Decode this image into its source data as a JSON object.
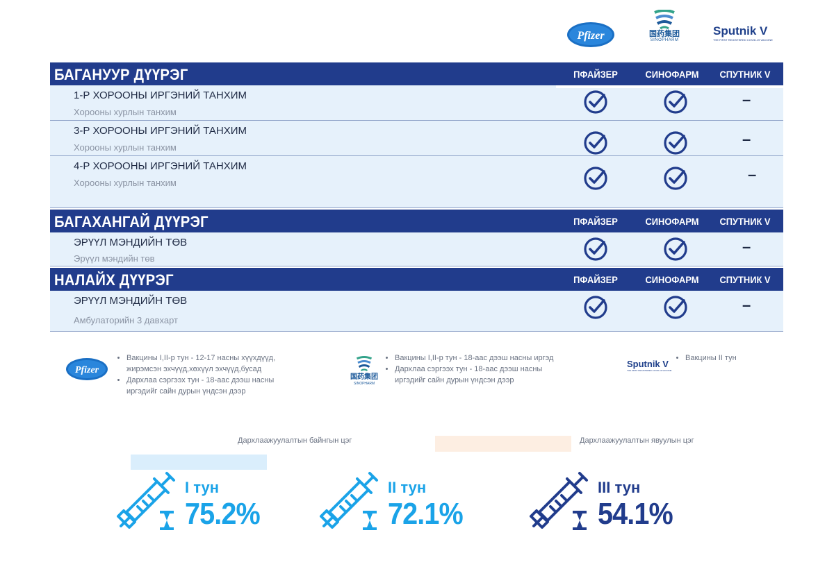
{
  "logos": {
    "pfizer": "Pfizer",
    "sinopharm_cn": "国药集团",
    "sinopharm_en": "SINOPHARM",
    "sputnik": "Sputnik V",
    "sputnik_sub": "THE FIRST REGISTERED COVID-19 VACCINE"
  },
  "columns": {
    "c1": "ПФАЙЗЕР",
    "c2": "СИНОФАРМ",
    "c3": "СПУТНИК V"
  },
  "sections": [
    {
      "title": "БАГАНУУР ДҮҮРЭГ",
      "rows": [
        {
          "title": "1-Р ХОРООНЫ ИРГЭНИЙ ТАНХИМ",
          "sub": "Хорооны хурлын танхим",
          "dash": "–"
        },
        {
          "title": "3-Р ХОРООНЫ ИРГЭНИЙ ТАНХИМ",
          "sub": "Хорооны хурлын  танхим",
          "dash": "–"
        },
        {
          "title": "4-Р ХОРООНЫ ИРГЭНИЙ ТАНХИМ",
          "sub": "Хорооны хурлын танхим",
          "dash": "–"
        }
      ]
    },
    {
      "title": "БАГАХАНГАЙ ДҮҮРЭГ",
      "rows": [
        {
          "title": "ЭРҮҮЛ МЭНДИЙН ТӨВ",
          "sub": "Эрүүл мэндийн төв",
          "dash": "–"
        }
      ]
    },
    {
      "title": "НАЛАЙХ ДҮҮРЭГ",
      "rows": [
        {
          "title": "ЭРҮҮЛ МЭНДИЙН ТӨВ",
          "sub": "Амбулаторийн 3 давхарт",
          "dash": "–"
        }
      ]
    }
  ],
  "legend": {
    "pfizer": [
      "Вакцины I,II-р тун - 12-17 насны хүүхдүүд, жирэмсэн эхчүүд,хөхүүл эхчүүд,бусад",
      "Дархлаа сэргээх тун - 18-аас дээш насны иргэдийг сайн дурын үндсэн дээр"
    ],
    "sinopharm": [
      "Вакцины I,II-р тун - 18-аас дээш насны иргэд",
      "Дархлаа сэргээх тун - 18-аас дээш насны иргэдийг сайн дурын үндсэн дээр"
    ],
    "sputnik": [
      "Вакцины II тун"
    ]
  },
  "map_labels": {
    "fixed": "Дархлаажуулалтын байнгын цэг",
    "mobile": "Дархлаажуулалтын явуулын цэг"
  },
  "colors": {
    "navy": "#213c8c",
    "light_blue": "#1aa3e8",
    "row_bg": "#e6f1fb",
    "fixed_box": "#daeefc",
    "mobile_box": "#fdeee2"
  },
  "stats": [
    {
      "dose": "I тун",
      "percent": "75.2%",
      "color": "#1aa3e8"
    },
    {
      "dose": "II тун",
      "percent": "72.1%",
      "color": "#1aa3e8"
    },
    {
      "dose": "III тун",
      "percent": "54.1%",
      "color": "#213c8c"
    }
  ]
}
